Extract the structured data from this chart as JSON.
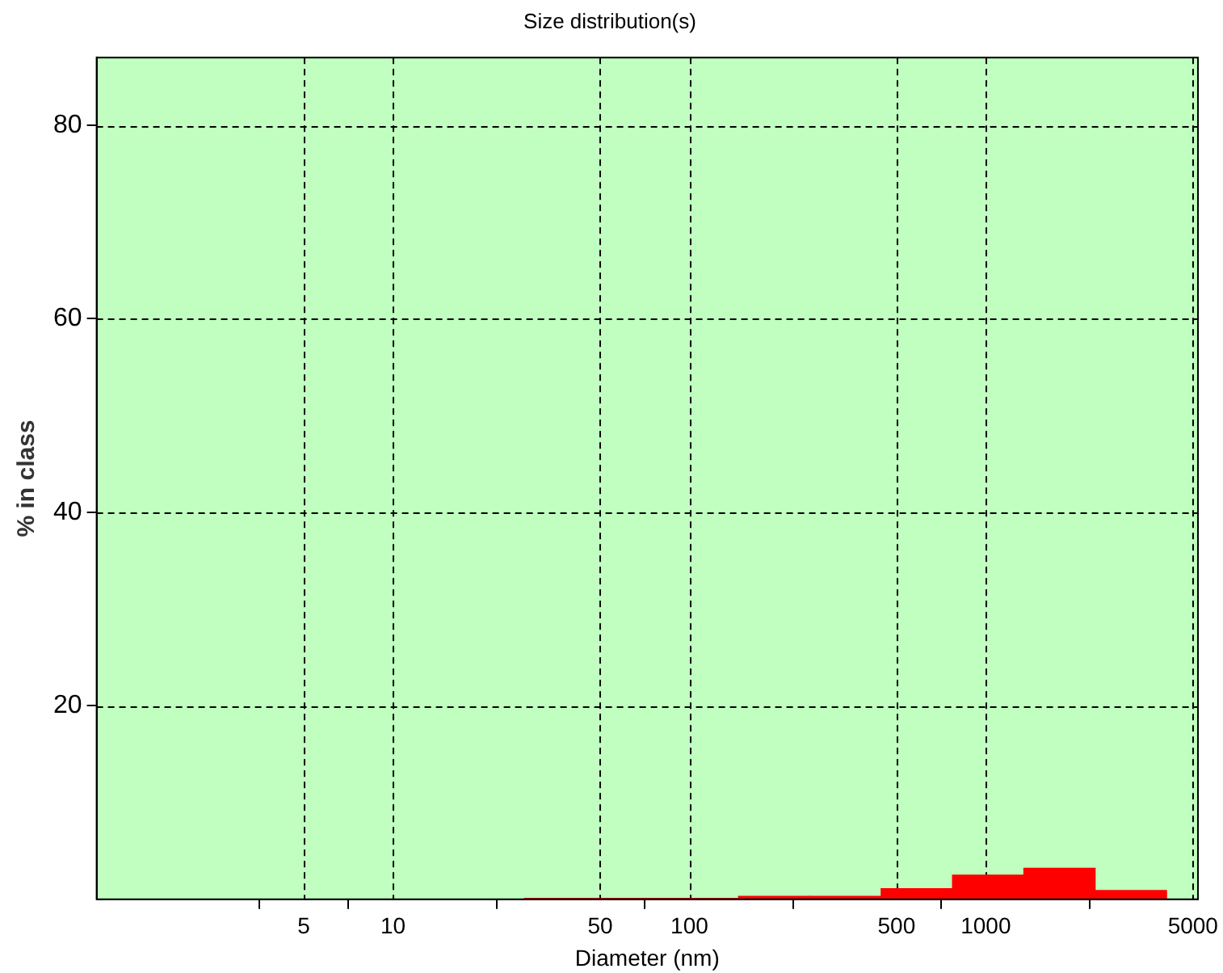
{
  "chart_data": {
    "type": "histogram",
    "title": "Size distribution(s)",
    "xlabel": "Diameter (nm)",
    "ylabel": "% in class",
    "bins": [
      27.8,
      48.3,
      84.1,
      146.5,
      254.8,
      443.5,
      772,
      1344,
      2339,
      4075
    ],
    "values": [
      0.1,
      0.1,
      0.1,
      0.3,
      0.3,
      1.1,
      2.5,
      3.2,
      0.9
    ],
    "color": "#ff0000",
    "log": "x",
    "xlim": [
      1,
      5200
    ],
    "xticks": [
      5,
      10,
      50,
      100,
      500,
      1000,
      5000
    ],
    "ylim": [
      0,
      87
    ],
    "yticks": [
      20,
      40,
      60,
      80
    ],
    "grid": true,
    "line_style": "dashed"
  }
}
